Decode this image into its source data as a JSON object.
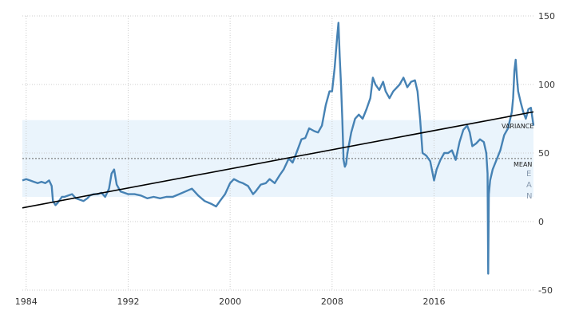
{
  "chart_data": {
    "type": "line",
    "title": "",
    "xlabel": "",
    "ylabel": "",
    "xlim": [
      1983.7,
      2023.8
    ],
    "ylim": [
      -50,
      150
    ],
    "x_ticks": [
      {
        "value": 1984,
        "label": "1984"
      },
      {
        "value": 1992,
        "label": "1992"
      },
      {
        "value": 2000,
        "label": "2000"
      },
      {
        "value": 2008,
        "label": "2008"
      },
      {
        "value": 2016,
        "label": "2016"
      }
    ],
    "y_ticks": [
      {
        "value": 150,
        "label": "150"
      },
      {
        "value": 100,
        "label": "100"
      },
      {
        "value": 50,
        "label": "50"
      },
      {
        "value": 0,
        "label": "0"
      },
      {
        "value": -50,
        "label": "-50"
      }
    ],
    "grid": true,
    "y_axis_position": "right",
    "colors": {
      "series": "#4682b4",
      "trend": "#000000",
      "band": "#eaf4fc",
      "grid": "#cccccc",
      "axis_text": "#333333",
      "mean_line": "#666666",
      "mean_text": "#8a9bb0"
    },
    "series": [
      {
        "x": [
          1983.7,
          1984.0,
          1984.3,
          1984.6,
          1984.9,
          1985.2,
          1985.5,
          1985.8,
          1986.0,
          1986.1,
          1986.3,
          1986.5,
          1986.8,
          1987.0,
          1987.3,
          1987.6,
          1987.9,
          1988.2,
          1988.5,
          1988.8,
          1989.0,
          1989.3,
          1989.6,
          1989.9,
          1990.2,
          1990.5,
          1990.7,
          1990.9,
          1991.1,
          1991.4,
          1991.7,
          1992.0,
          1992.5,
          1993.0,
          1993.5,
          1994.0,
          1994.5,
          1995.0,
          1995.5,
          1996.0,
          1996.5,
          1997.0,
          1997.5,
          1998.0,
          1998.5,
          1998.9,
          1999.2,
          1999.6,
          2000.0,
          2000.3,
          2000.7,
          2001.0,
          2001.4,
          2001.8,
          2002.0,
          2002.4,
          2002.8,
          2003.1,
          2003.5,
          2003.9,
          2004.2,
          2004.6,
          2004.9,
          2005.2,
          2005.6,
          2005.9,
          2006.2,
          2006.6,
          2006.9,
          2007.2,
          2007.5,
          2007.8,
          2008.0,
          2008.2,
          2008.4,
          2008.5,
          2008.6,
          2008.7,
          2008.8,
          2008.9,
          2009.0,
          2009.1,
          2009.2,
          2009.5,
          2009.8,
          2010.1,
          2010.4,
          2010.7,
          2011.0,
          2011.2,
          2011.4,
          2011.7,
          2012.0,
          2012.2,
          2012.5,
          2012.8,
          2013.0,
          2013.3,
          2013.6,
          2013.9,
          2014.2,
          2014.5,
          2014.7,
          2014.9,
          2015.1,
          2015.4,
          2015.7,
          2016.0,
          2016.2,
          2016.5,
          2016.8,
          2017.1,
          2017.4,
          2017.7,
          2018.0,
          2018.3,
          2018.6,
          2018.8,
          2019.0,
          2019.3,
          2019.6,
          2019.9,
          2020.1,
          2020.2,
          2020.25,
          2020.3,
          2020.4,
          2020.6,
          2020.9,
          2021.2,
          2021.5,
          2021.8,
          2022.0,
          2022.1,
          2022.2,
          2022.3,
          2022.4,
          2022.5,
          2022.6,
          2022.8,
          2023.0,
          2023.2,
          2023.4,
          2023.6,
          2023.8
        ],
        "values": [
          30,
          31,
          30,
          29,
          28,
          29,
          28,
          30,
          26,
          15,
          12,
          14,
          18,
          18,
          19,
          20,
          17,
          16,
          15,
          17,
          19,
          20,
          20,
          21,
          18,
          24,
          35,
          38,
          27,
          22,
          21,
          20,
          20,
          19,
          17,
          18,
          17,
          18,
          18,
          20,
          22,
          24,
          19,
          15,
          13,
          11,
          15,
          20,
          28,
          31,
          29,
          28,
          26,
          20,
          22,
          27,
          28,
          31,
          28,
          34,
          38,
          46,
          43,
          50,
          60,
          61,
          68,
          66,
          65,
          70,
          85,
          95,
          95,
          112,
          135,
          145,
          120,
          100,
          75,
          45,
          40,
          42,
          50,
          65,
          75,
          78,
          75,
          82,
          90,
          105,
          100,
          96,
          102,
          95,
          90,
          95,
          97,
          100,
          105,
          98,
          102,
          103,
          95,
          75,
          50,
          48,
          44,
          30,
          38,
          45,
          50,
          50,
          52,
          45,
          58,
          67,
          70,
          65,
          55,
          57,
          60,
          58,
          50,
          35,
          -38,
          20,
          30,
          38,
          45,
          52,
          63,
          68,
          76,
          80,
          90,
          110,
          118,
          105,
          95,
          87,
          80,
          75,
          82,
          83,
          70
        ]
      }
    ],
    "trend": {
      "x": [
        1983.7,
        2023.8
      ],
      "values": [
        10,
        80
      ]
    },
    "mean": 46,
    "variance_band": [
      18,
      74
    ],
    "annotations": {
      "variance": "VARIANCE",
      "mean": "MEAN",
      "mean_vertical": [
        "E",
        "A",
        "N"
      ]
    }
  }
}
